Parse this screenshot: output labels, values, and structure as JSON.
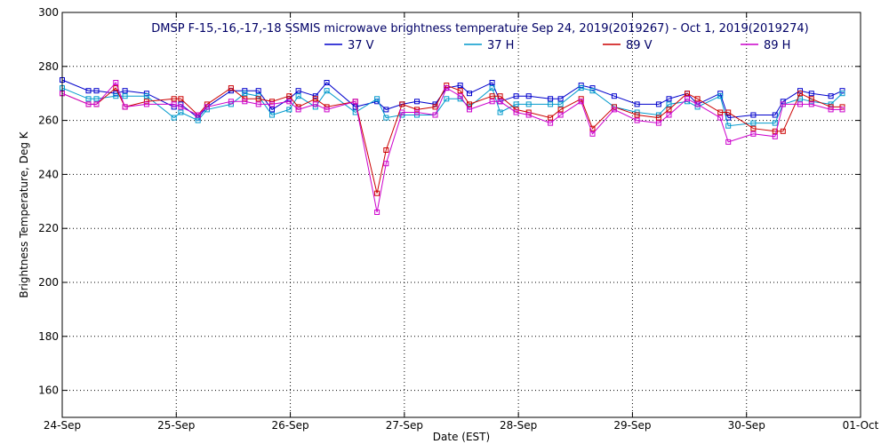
{
  "chart_data": {
    "type": "line",
    "title": "DMSP F-15,-16,-17,-18 SSMIS microwave brightness temperature Sep 24, 2019(2019267) - Oct  1, 2019(2019274)",
    "xlabel": "Date (EST)",
    "ylabel": "Brightness Temperature, Deg K",
    "xlim": [
      0,
      7
    ],
    "ylim": [
      150,
      300
    ],
    "x_tick_values": [
      0,
      1,
      2,
      3,
      4,
      5,
      6,
      7
    ],
    "x_tick_labels": [
      "24-Sep",
      "25-Sep",
      "26-Sep",
      "27-Sep",
      "28-Sep",
      "29-Sep",
      "30-Sep",
      "01-Oct"
    ],
    "y_tick_values": [
      160,
      180,
      200,
      220,
      240,
      260,
      280,
      300
    ],
    "y_tick_labels": [
      "160",
      "180",
      "200",
      "220",
      "240",
      "260",
      "280",
      "300"
    ],
    "grid": true,
    "legend_position": "top-center",
    "series": [
      {
        "name": "37 V",
        "color": "#0000cc",
        "x": [
          0.0,
          0.23,
          0.3,
          0.47,
          0.55,
          0.74,
          0.98,
          1.04,
          1.19,
          1.27,
          1.48,
          1.6,
          1.72,
          1.84,
          1.99,
          2.07,
          2.22,
          2.32,
          2.57,
          2.76,
          2.84,
          2.98,
          3.11,
          3.27,
          3.37,
          3.49,
          3.57,
          3.77,
          3.84,
          3.98,
          4.09,
          4.28,
          4.37,
          4.55,
          4.65,
          4.84,
          5.04,
          5.23,
          5.32,
          5.48,
          5.57,
          5.77,
          5.84,
          6.06,
          6.25,
          6.32,
          6.47,
          6.57,
          6.74,
          6.84
        ],
        "values": [
          275,
          271,
          271,
          270,
          271,
          270,
          265,
          266,
          261,
          265,
          271,
          271,
          271,
          264,
          268,
          271,
          269,
          274,
          265,
          267,
          264,
          266,
          267,
          266,
          272,
          273,
          270,
          274,
          267,
          269,
          269,
          268,
          268,
          273,
          272,
          269,
          266,
          266,
          268,
          270,
          266,
          270,
          261,
          262,
          262,
          267,
          271,
          270,
          269,
          271
        ]
      },
      {
        "name": "37 H",
        "color": "#0099cc",
        "x": [
          0.0,
          0.23,
          0.3,
          0.47,
          0.55,
          0.74,
          0.98,
          1.04,
          1.19,
          1.27,
          1.48,
          1.6,
          1.72,
          1.84,
          1.99,
          2.07,
          2.22,
          2.32,
          2.57,
          2.76,
          2.84,
          2.98,
          3.11,
          3.27,
          3.37,
          3.49,
          3.57,
          3.77,
          3.84,
          3.98,
          4.09,
          4.28,
          4.37,
          4.55,
          4.65,
          4.84,
          5.04,
          5.23,
          5.32,
          5.48,
          5.57,
          5.77,
          5.84,
          6.06,
          6.25,
          6.32,
          6.47,
          6.57,
          6.74,
          6.84
        ],
        "values": [
          272,
          268,
          268,
          269,
          269,
          269,
          261,
          263,
          260,
          264,
          266,
          270,
          269,
          262,
          264,
          269,
          265,
          271,
          263,
          268,
          261,
          262,
          262,
          262,
          268,
          268,
          265,
          272,
          263,
          266,
          266,
          266,
          266,
          272,
          271,
          265,
          263,
          262,
          266,
          267,
          265,
          269,
          258,
          259,
          259,
          266,
          268,
          267,
          266,
          270
        ]
      },
      {
        "name": "89 V",
        "color": "#cc0000",
        "x": [
          0.0,
          0.23,
          0.3,
          0.47,
          0.55,
          0.74,
          0.98,
          1.04,
          1.19,
          1.27,
          1.48,
          1.6,
          1.72,
          1.84,
          1.99,
          2.07,
          2.22,
          2.32,
          2.57,
          2.76,
          2.84,
          2.98,
          3.11,
          3.27,
          3.37,
          3.49,
          3.57,
          3.77,
          3.84,
          3.98,
          4.09,
          4.28,
          4.37,
          4.55,
          4.65,
          4.84,
          5.04,
          5.23,
          5.32,
          5.48,
          5.57,
          5.77,
          5.84,
          6.06,
          6.25,
          6.32,
          6.47,
          6.57,
          6.74,
          6.84
        ],
        "values": [
          270,
          266,
          266,
          272,
          265,
          267,
          268,
          268,
          262,
          266,
          272,
          268,
          268,
          267,
          269,
          265,
          268,
          265,
          267,
          233,
          249,
          266,
          264,
          265,
          273,
          271,
          266,
          269,
          269,
          264,
          263,
          261,
          264,
          268,
          257,
          265,
          262,
          261,
          264,
          270,
          268,
          263,
          263,
          257,
          256,
          256,
          270,
          268,
          265,
          265
        ]
      },
      {
        "name": "89 H",
        "color": "#cc00cc",
        "x": [
          0.0,
          0.23,
          0.3,
          0.47,
          0.55,
          0.74,
          0.98,
          1.04,
          1.19,
          1.27,
          1.48,
          1.6,
          1.72,
          1.84,
          1.99,
          2.07,
          2.22,
          2.32,
          2.57,
          2.76,
          2.84,
          2.98,
          3.11,
          3.27,
          3.37,
          3.49,
          3.57,
          3.77,
          3.84,
          3.98,
          4.09,
          4.28,
          4.37,
          4.55,
          4.65,
          4.84,
          5.04,
          5.23,
          5.32,
          5.48,
          5.57,
          5.77,
          5.84,
          6.06,
          6.25,
          6.32,
          6.47,
          6.57,
          6.74,
          6.84
        ],
        "values": [
          270,
          266,
          266,
          274,
          265,
          266,
          266,
          265,
          262,
          265,
          267,
          267,
          266,
          266,
          267,
          264,
          266,
          264,
          267,
          226,
          244,
          263,
          263,
          262,
          272,
          269,
          264,
          267,
          267,
          263,
          262,
          259,
          262,
          267,
          255,
          264,
          260,
          259,
          262,
          268,
          266,
          261,
          252,
          255,
          254,
          266,
          266,
          266,
          264,
          264
        ]
      }
    ]
  }
}
